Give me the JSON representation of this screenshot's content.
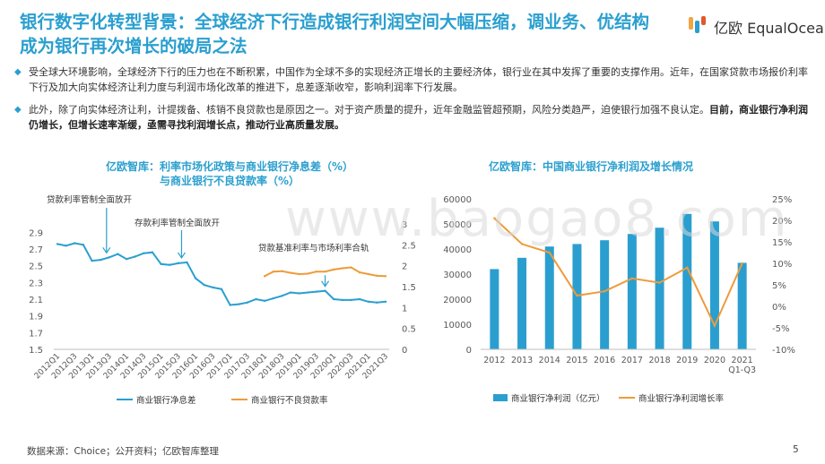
{
  "title": "银行数字化转型背景：全球经济下行造成银行利润空间大幅压缩，调业务、优结构成为银行再次增长的破局之法",
  "logo": {
    "text": "亿欧 EqualOcean"
  },
  "bullets": [
    {
      "text": "受全球大环境影响，全球经济下行的压力也在不断积累，中国作为全球不多的实现经济正增长的主要经济体，银行业在其中发挥了重要的支撑作用。近年，在国家贷款市场报价利率下行及加大向实体经济让利力度与利润市场化改革的推进下，息差逐渐收窄，影响利润率下行发展。",
      "bold": ""
    },
    {
      "text": "此外，除了向实体经济让利，计提拨备、核销不良贷款也是原因之一。对于资产质量的提升，近年金融监管超预期，风险分类趋严，迫使银行加强不良认定。",
      "bold": "目前，商业银行净利润仍增长，但增长速率渐缓，亟需寻找利润增长点，推动行业高质量发展。"
    }
  ],
  "watermark": "www.baogao8.com",
  "chart_data": [
    {
      "type": "line",
      "title": "亿欧智库：利率市场化政策与商业银行净息差（%）与商业银行不良贷款率（%）",
      "title_lines": [
        "亿欧智库：利率市场化政策与商业银行净息差（%）",
        "与商业银行不良贷款率（%）"
      ],
      "x": [
        "2012Q1",
        "2012Q2",
        "2012Q3",
        "2012Q4",
        "2013Q1",
        "2013Q2",
        "2013Q3",
        "2013Q4",
        "2014Q1",
        "2014Q2",
        "2014Q3",
        "2014Q4",
        "2015Q1",
        "2015Q2",
        "2015Q3",
        "2015Q4",
        "2016Q1",
        "2016Q2",
        "2016Q3",
        "2016Q4",
        "2017Q1",
        "2017Q2",
        "2017Q3",
        "2017Q4",
        "2018Q1",
        "2018Q2",
        "2018Q3",
        "2018Q4",
        "2019Q1",
        "2019Q2",
        "2019Q3",
        "2019Q4",
        "2020Q1",
        "2020Q2",
        "2020Q3",
        "2020Q4",
        "2021Q1",
        "2021Q2",
        "2021Q3"
      ],
      "x_tick_labels": [
        "2012Q1",
        "2012Q3",
        "2013Q1",
        "2013Q3",
        "2014Q1",
        "2014Q3",
        "2015Q1",
        "2015Q3",
        "2016Q1",
        "2016Q3",
        "2017Q1",
        "2017Q3",
        "2018Q1",
        "2018Q3",
        "2019Q1",
        "2019Q3",
        "2020Q1",
        "2020Q3",
        "2021Q1",
        "2021Q3"
      ],
      "y_left_ticks": [
        "1.5",
        "1.7",
        "1.9",
        "2.1",
        "2.3",
        "2.5",
        "2.7",
        "2.9"
      ],
      "y_right_ticks": [
        "0",
        "0.5",
        "1",
        "1.5",
        "2",
        "2.5",
        "3"
      ],
      "ylim_left": [
        1.5,
        3.0
      ],
      "ylim_right": [
        0,
        3.0
      ],
      "series": [
        {
          "name": "商业银行净息差",
          "axis": "left",
          "color": "#2a9fcf",
          "values": [
            2.76,
            2.74,
            2.77,
            2.75,
            2.56,
            2.57,
            2.6,
            2.64,
            2.58,
            2.61,
            2.65,
            2.66,
            2.52,
            2.51,
            2.53,
            2.54,
            2.35,
            2.27,
            2.24,
            2.22,
            2.03,
            2.04,
            2.06,
            2.1,
            2.08,
            2.11,
            2.14,
            2.18,
            2.17,
            2.18,
            2.19,
            2.2,
            2.1,
            2.09,
            2.09,
            2.1,
            2.07,
            2.06,
            2.07
          ]
        },
        {
          "name": "商业银行不良贷款率",
          "axis": "right",
          "color": "#ee9b3a",
          "values": [
            null,
            null,
            null,
            null,
            null,
            null,
            null,
            null,
            null,
            null,
            null,
            null,
            null,
            null,
            null,
            null,
            null,
            null,
            null,
            null,
            null,
            null,
            null,
            null,
            1.75,
            1.86,
            1.87,
            1.83,
            1.8,
            1.81,
            1.86,
            1.86,
            1.91,
            1.94,
            1.96,
            1.84,
            1.8,
            1.76,
            1.75
          ]
        }
      ],
      "annotations": [
        {
          "text": "贷款利率管制全面放开",
          "at": "2013Q3"
        },
        {
          "text": "存款利率管制全面放开",
          "at": "2015Q4"
        },
        {
          "text": "贷款基准利率与市场利率合轨",
          "at": "2019Q4"
        }
      ],
      "legend_placement": "bottom",
      "grid": false
    },
    {
      "type": "bar",
      "title": "亿欧智库：中国商业银行净利润及增长情况",
      "categories": [
        "2012",
        "2013",
        "2014",
        "2015",
        "2016",
        "2017",
        "2018",
        "2019",
        "2020",
        "2021 Q1-Q3"
      ],
      "category_lines": [
        [
          "2012"
        ],
        [
          "2013"
        ],
        [
          "2014"
        ],
        [
          "2015"
        ],
        [
          "2016"
        ],
        [
          "2017"
        ],
        [
          "2018"
        ],
        [
          "2019"
        ],
        [
          "2020"
        ],
        [
          "2021",
          "Q1-Q3"
        ]
      ],
      "y_left_ticks": [
        "0",
        "10000",
        "20000",
        "30000",
        "40000",
        "50000",
        "60000"
      ],
      "y_right_ticks": [
        "-10%",
        "-5%",
        "0%",
        "5%",
        "10%",
        "15%",
        "20%",
        "25%"
      ],
      "ylim_left": [
        0,
        60000
      ],
      "ylim_right": [
        -10,
        25
      ],
      "series": [
        {
          "name": "商业银行净利润（亿元）",
          "type": "bar",
          "axis": "left",
          "color": "#2a9fcf",
          "values": [
            32000,
            36500,
            41000,
            42000,
            43500,
            46000,
            48500,
            54000,
            51000,
            34500
          ]
        },
        {
          "name": "商业银行净利润增长率",
          "type": "line",
          "axis": "right",
          "color": "#ee9b3a",
          "values": [
            20.5,
            14.5,
            12.5,
            2.5,
            3.5,
            6.5,
            5.5,
            9.0,
            -4.5,
            10.0
          ]
        }
      ],
      "legend_placement": "bottom",
      "grid": false
    }
  ],
  "source": "数据来源：Choice；公开资料；亿欧智库整理",
  "page_number": "5"
}
